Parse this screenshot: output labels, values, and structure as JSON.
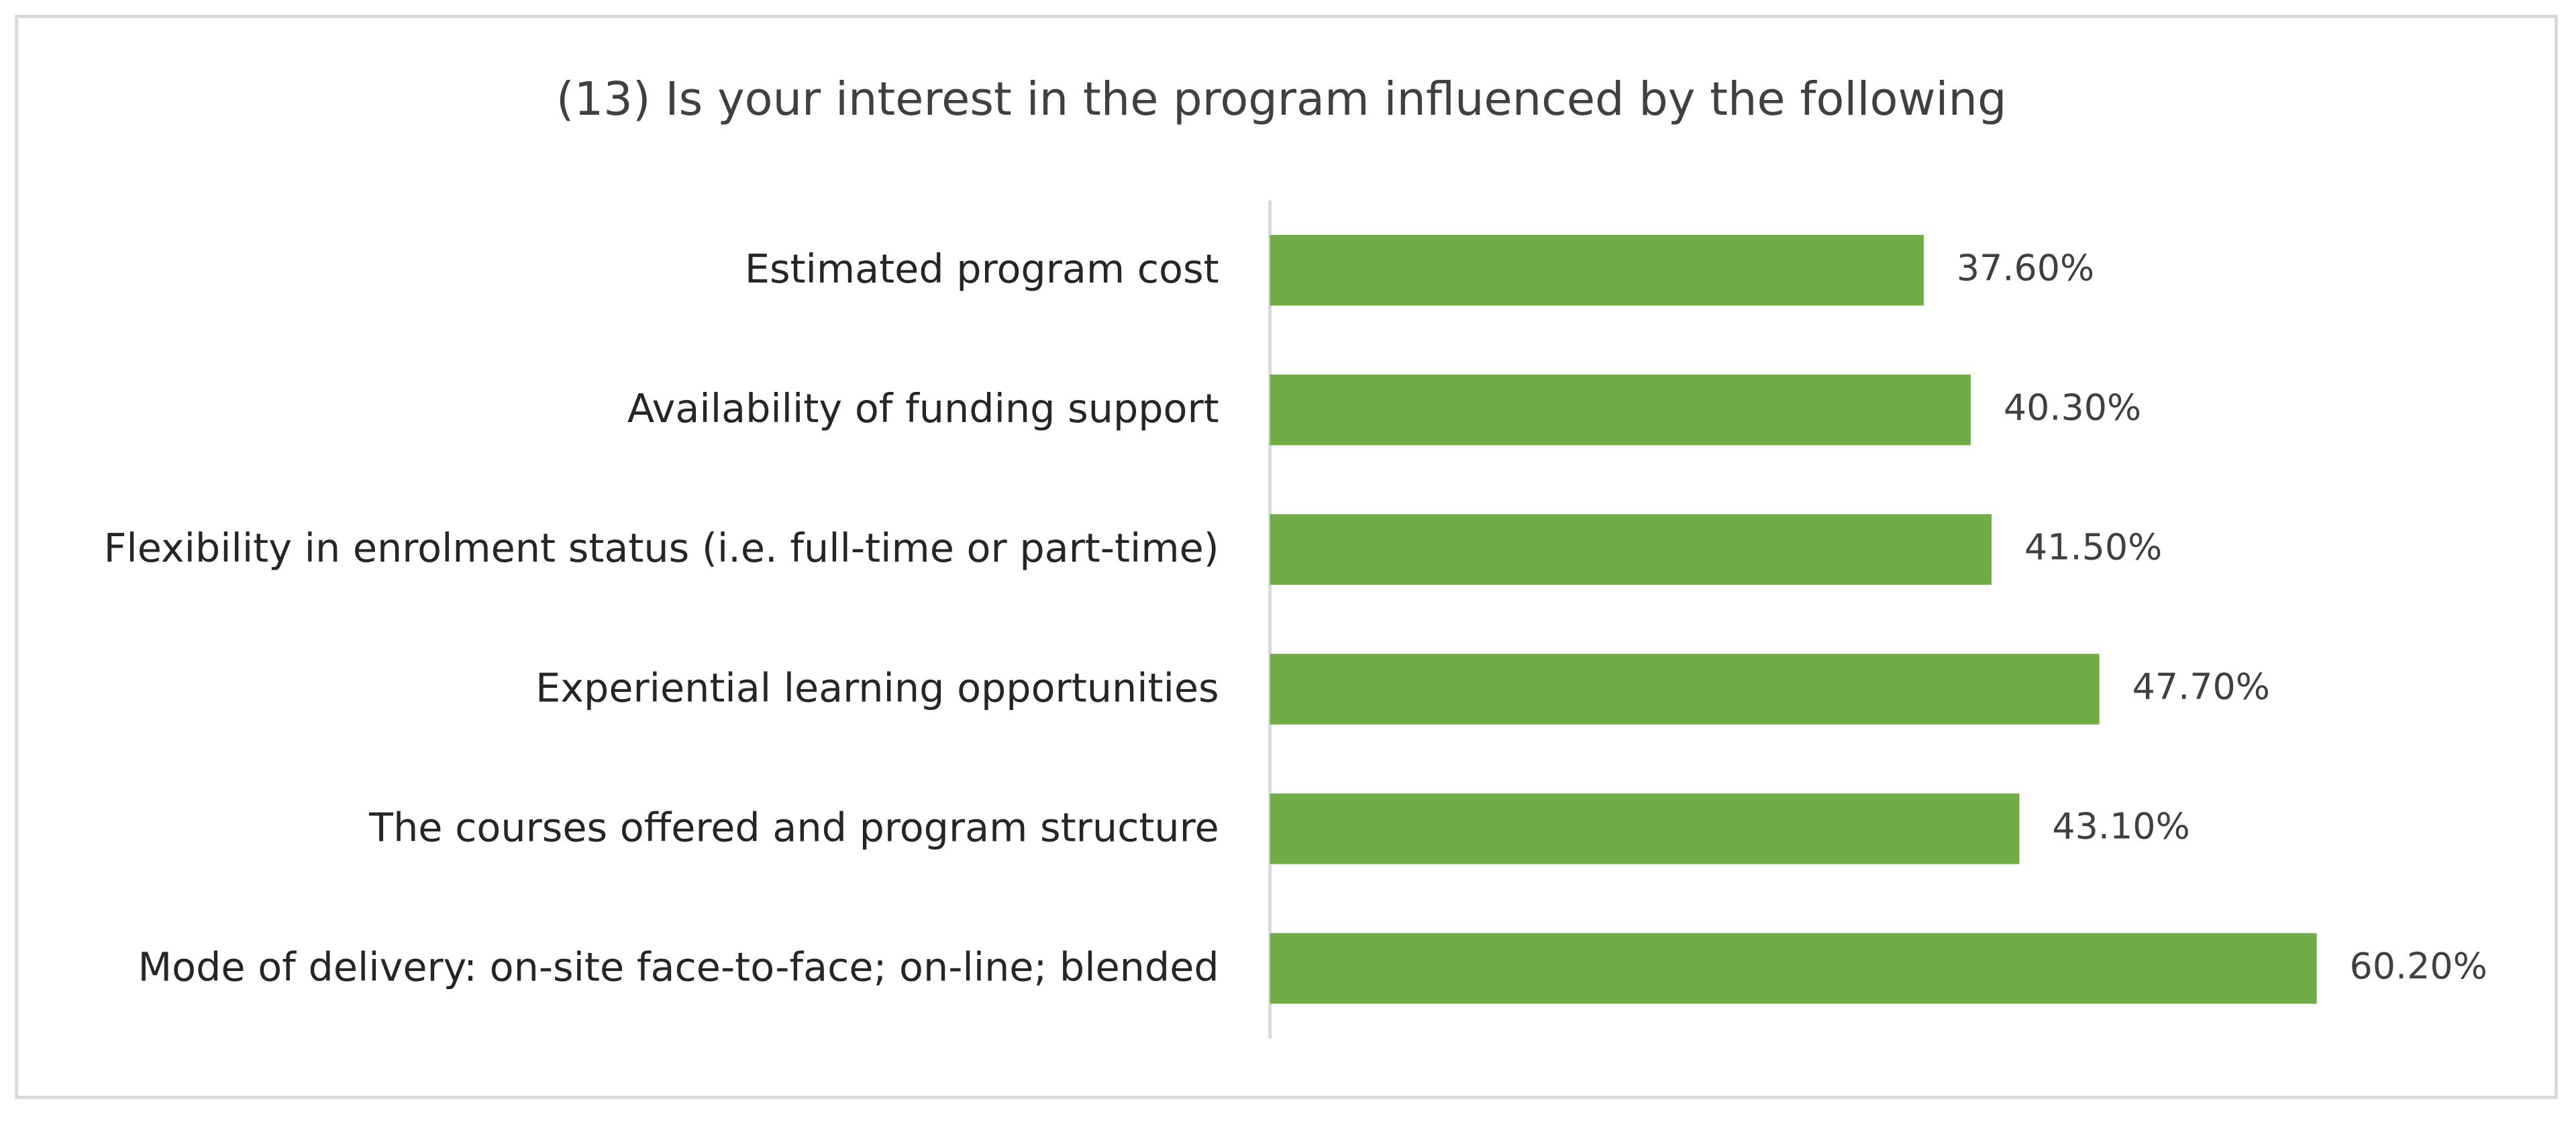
{
  "chart_data": {
    "type": "bar",
    "orientation": "horizontal",
    "title": "(13) Is your interest in the program influenced by the following",
    "categories": [
      "Estimated program cost",
      "Availability of funding support",
      "Flexibility in enrolment status (i.e. full-time or part-time)",
      "Experiential learning opportunities",
      "The courses offered and program structure",
      "Mode of delivery: on-site face-to-face; on-line; blended"
    ],
    "values": [
      37.6,
      40.3,
      41.5,
      47.7,
      43.1,
      60.2
    ],
    "value_labels": [
      "37.60%",
      "40.30%",
      "41.50%",
      "47.70%",
      "43.10%",
      "60.20%"
    ],
    "color": "#70ad47",
    "xlim": [
      0,
      70
    ]
  }
}
